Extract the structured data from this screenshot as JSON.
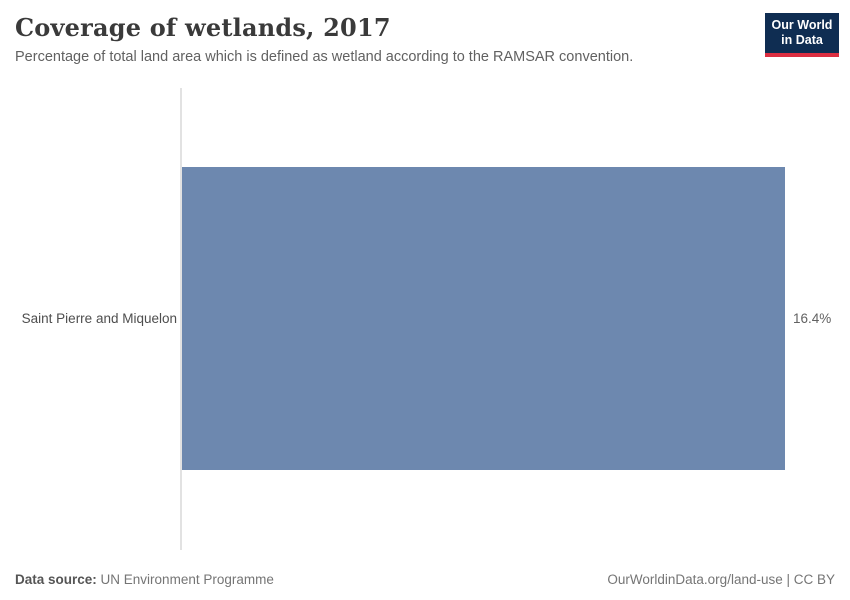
{
  "header": {
    "title": "Coverage of wetlands, 2017",
    "subtitle": "Percentage of total land area which is defined as wetland according to the RAMSAR convention."
  },
  "logo": {
    "line1": "Our World",
    "line2": "in Data",
    "bg_color": "#0f2d52",
    "accent_color": "#dc2e41"
  },
  "chart_data": {
    "type": "bar",
    "orientation": "horizontal",
    "title": "Coverage of wetlands, 2017",
    "categories": [
      "Saint Pierre and Miquelon"
    ],
    "values": [
      16.4
    ],
    "value_labels": [
      "16.4%"
    ],
    "unit": "%",
    "xlim": [
      0,
      16.4
    ],
    "grid": false,
    "legend": "none",
    "bar_color": "#6d88af"
  },
  "footer": {
    "data_source_label": "Data source:",
    "data_source_value": "UN Environment Programme",
    "attribution": "OurWorldinData.org/land-use | CC BY"
  }
}
